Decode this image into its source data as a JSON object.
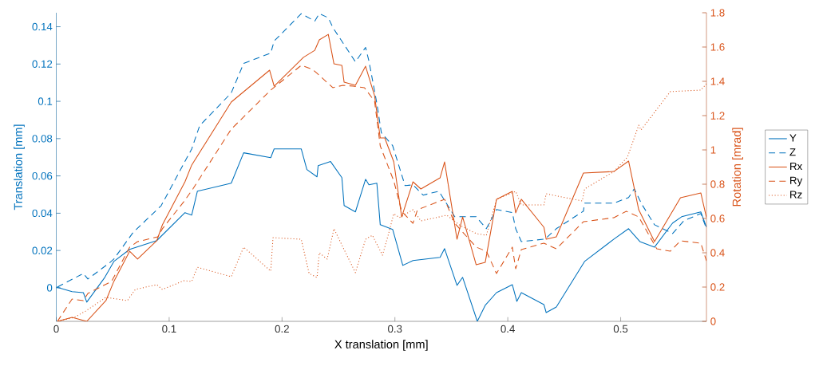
{
  "chart_data": {
    "type": "line",
    "xlabel": "X translation [mm]",
    "ylabel": "Translation [mm]",
    "y2label": "Rotation [mrad]",
    "xlim": [
      0,
      0.576
    ],
    "ylim": [
      -0.018,
      0.1475
    ],
    "y2lim": [
      0,
      1.8
    ],
    "xticks": [
      0,
      0.1,
      0.2,
      0.3,
      0.4,
      0.5
    ],
    "yticks": [
      0,
      0.02,
      0.04,
      0.06,
      0.08,
      0.1,
      0.12,
      0.14
    ],
    "y2ticks": [
      0,
      0.2,
      0.4,
      0.6,
      0.8,
      1,
      1.2,
      1.4,
      1.6,
      1.8
    ],
    "legend": "right",
    "series": [
      {
        "name": "Y",
        "color": "#0072bd",
        "line_style": "solid",
        "x": [
          0,
          0.014,
          0.024,
          0.027,
          0.043,
          0.051,
          0.065,
          0.089,
          0.114,
          0.12,
          0.125,
          0.155,
          0.166,
          0.19,
          0.193,
          0.217,
          0.222,
          0.231,
          0.232,
          0.243,
          0.253,
          0.255,
          0.265,
          0.274,
          0.277,
          0.284,
          0.287,
          0.298,
          0.307,
          0.316,
          0.34,
          0.344,
          0.355,
          0.36,
          0.373,
          0.38,
          0.39,
          0.404,
          0.408,
          0.412,
          0.432,
          0.434,
          0.443,
          0.468,
          0.494,
          0.507,
          0.517,
          0.53,
          0.546,
          0.554,
          0.571,
          0.576
        ],
        "values": [
          0.0004,
          -0.0021,
          -0.0026,
          -0.0077,
          0.0056,
          0.0141,
          0.0206,
          0.0253,
          0.0403,
          0.039,
          0.0518,
          0.0561,
          0.0724,
          0.0698,
          0.0745,
          0.0745,
          0.0634,
          0.0595,
          0.0655,
          0.0677,
          0.0591,
          0.0441,
          0.0407,
          0.0582,
          0.0552,
          0.0561,
          0.0338,
          0.0313,
          0.012,
          0.0146,
          0.0163,
          0.021,
          0.0013,
          0.0056,
          -0.018,
          -0.0094,
          -0.0026,
          0.0017,
          -0.0073,
          -0.0026,
          -0.009,
          -0.0133,
          -0.0103,
          0.0141,
          0.0261,
          0.0317,
          0.0248,
          0.0218,
          0.0347,
          0.0381,
          0.0407,
          0.0325
        ]
      },
      {
        "name": "Z",
        "color": "#0072bd",
        "line_style": "dashed",
        "x": [
          0.001,
          0.024,
          0.028,
          0.047,
          0.051,
          0.068,
          0.093,
          0.12,
          0.127,
          0.155,
          0.166,
          0.19,
          0.193,
          0.217,
          0.229,
          0.233,
          0.241,
          0.245,
          0.265,
          0.274,
          0.277,
          0.284,
          0.288,
          0.298,
          0.309,
          0.316,
          0.325,
          0.339,
          0.353,
          0.372,
          0.381,
          0.39,
          0.404,
          0.407,
          0.412,
          0.433,
          0.443,
          0.467,
          0.468,
          0.494,
          0.507,
          0.512,
          0.519,
          0.53,
          0.546,
          0.556,
          0.571,
          0.576
        ],
        "values": [
          0.0004,
          0.0077,
          0.0047,
          0.0133,
          0.0154,
          0.0296,
          0.0441,
          0.0745,
          0.0869,
          0.1045,
          0.1203,
          0.1259,
          0.1323,
          0.147,
          0.143,
          0.147,
          0.1448,
          0.1396,
          0.1212,
          0.1289,
          0.1216,
          0.0989,
          0.0831,
          0.0762,
          0.0548,
          0.0552,
          0.0497,
          0.0518,
          0.0381,
          0.0381,
          0.0317,
          0.042,
          0.0403,
          0.0317,
          0.0248,
          0.0261,
          0.0317,
          0.0411,
          0.0454,
          0.0454,
          0.0484,
          0.0531,
          0.0445,
          0.0338,
          0.0291,
          0.036,
          0.0398,
          0.0317
        ]
      },
      {
        "name": "Rx",
        "color": "#d95319",
        "line_style": "solid",
        "axis": "y2",
        "x": [
          0.001,
          0.014,
          0.027,
          0.044,
          0.051,
          0.065,
          0.072,
          0.089,
          0.094,
          0.114,
          0.12,
          0.155,
          0.189,
          0.193,
          0.219,
          0.229,
          0.233,
          0.241,
          0.246,
          0.253,
          0.255,
          0.265,
          0.274,
          0.282,
          0.287,
          0.291,
          0.299,
          0.306,
          0.316,
          0.323,
          0.34,
          0.344,
          0.355,
          0.36,
          0.372,
          0.38,
          0.39,
          0.404,
          0.407,
          0.412,
          0.432,
          0.434,
          0.443,
          0.467,
          0.494,
          0.507,
          0.516,
          0.53,
          0.553,
          0.571,
          0.576
        ],
        "values": [
          0,
          0.023,
          0,
          0.121,
          0.233,
          0.409,
          0.363,
          0.47,
          0.563,
          0.814,
          0.912,
          1.279,
          1.465,
          1.372,
          1.54,
          1.581,
          1.642,
          1.674,
          1.502,
          1.493,
          1.395,
          1.377,
          1.488,
          1.316,
          1.07,
          1.07,
          0.93,
          0.609,
          0.814,
          0.772,
          0.837,
          0.93,
          0.479,
          0.609,
          0.33,
          0.344,
          0.712,
          0.758,
          0.633,
          0.712,
          0.549,
          0.479,
          0.493,
          0.865,
          0.874,
          0.935,
          0.651,
          0.465,
          0.721,
          0.749,
          0.605
        ]
      },
      {
        "name": "Ry",
        "color": "#d95319",
        "line_style": "dashed",
        "axis": "y2",
        "x": [
          0.001,
          0.014,
          0.024,
          0.028,
          0.049,
          0.065,
          0.072,
          0.09,
          0.094,
          0.113,
          0.121,
          0.155,
          0.19,
          0.217,
          0.227,
          0.231,
          0.245,
          0.254,
          0.263,
          0.273,
          0.282,
          0.287,
          0.299,
          0.306,
          0.316,
          0.32,
          0.344,
          0.353,
          0.372,
          0.381,
          0.39,
          0.404,
          0.407,
          0.412,
          0.432,
          0.443,
          0.467,
          0.494,
          0.505,
          0.516,
          0.532,
          0.544,
          0.553,
          0.571,
          0.576
        ],
        "values": [
          0,
          0.13,
          0.121,
          0.163,
          0.233,
          0.433,
          0.465,
          0.493,
          0.54,
          0.698,
          0.772,
          1.121,
          1.349,
          1.493,
          1.47,
          1.447,
          1.363,
          1.377,
          1.372,
          1.363,
          1.284,
          1.023,
          0.819,
          0.642,
          0.572,
          0.651,
          0.712,
          0.572,
          0.433,
          0.409,
          0.279,
          0.433,
          0.307,
          0.419,
          0.456,
          0.423,
          0.581,
          0.605,
          0.642,
          0.609,
          0.423,
          0.409,
          0.47,
          0.456,
          0.353
        ]
      },
      {
        "name": "Rz",
        "color": "#d95319",
        "line_style": "dotted",
        "axis": "y2",
        "x": [
          0.001,
          0.016,
          0.026,
          0.044,
          0.063,
          0.07,
          0.089,
          0.094,
          0.113,
          0.12,
          0.125,
          0.155,
          0.166,
          0.19,
          0.192,
          0.217,
          0.224,
          0.231,
          0.233,
          0.24,
          0.246,
          0.265,
          0.274,
          0.28,
          0.289,
          0.294,
          0.299,
          0.304,
          0.316,
          0.323,
          0.346,
          0.358,
          0.372,
          0.381,
          0.39,
          0.407,
          0.412,
          0.432,
          0.434,
          0.466,
          0.468,
          0.494,
          0.506,
          0.516,
          0.518,
          0.544,
          0.571,
          0.576
        ],
        "values": [
          0,
          0.023,
          0.06,
          0.14,
          0.121,
          0.186,
          0.214,
          0.186,
          0.237,
          0.233,
          0.316,
          0.26,
          0.433,
          0.293,
          0.488,
          0.479,
          0.279,
          0.256,
          0.4,
          0.363,
          0.54,
          0.284,
          0.479,
          0.502,
          0.386,
          0.502,
          0.628,
          0.605,
          0.651,
          0.586,
          0.619,
          0.558,
          0.512,
          0.502,
          0.712,
          0.758,
          0.679,
          0.679,
          0.744,
          0.702,
          0.772,
          0.874,
          0.958,
          1.144,
          1.116,
          1.34,
          1.349,
          1.386
        ]
      }
    ]
  }
}
